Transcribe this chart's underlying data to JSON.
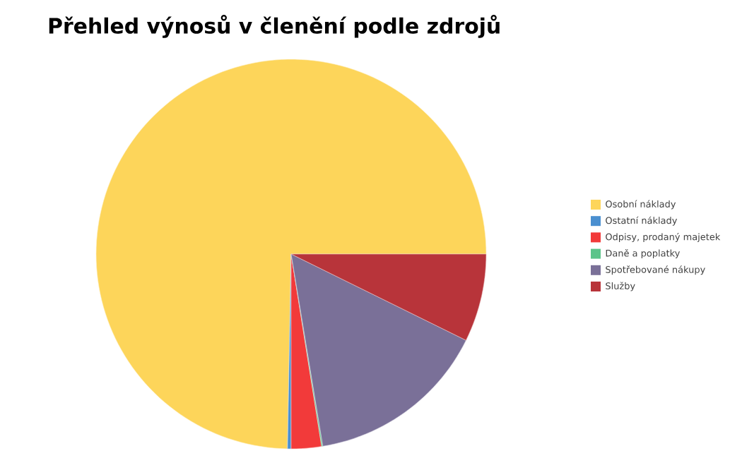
{
  "chart_data": {
    "type": "pie",
    "title": "Přehled výnosů v členění podle zdrojů",
    "legend": "right",
    "categories": [
      "Osobní náklady",
      "Ostatní náklady",
      "Odpisy, prodaný majetek",
      "Daně a poplatky",
      "Spotřebované nákupy",
      "Služby"
    ],
    "values": [
      74.7,
      0.3,
      2.5,
      0.1,
      15.1,
      7.3
    ],
    "colors": [
      "#fdd55a",
      "#4a8fd0",
      "#f23a3a",
      "#5cc48a",
      "#7a7098",
      "#b8343a"
    ]
  }
}
